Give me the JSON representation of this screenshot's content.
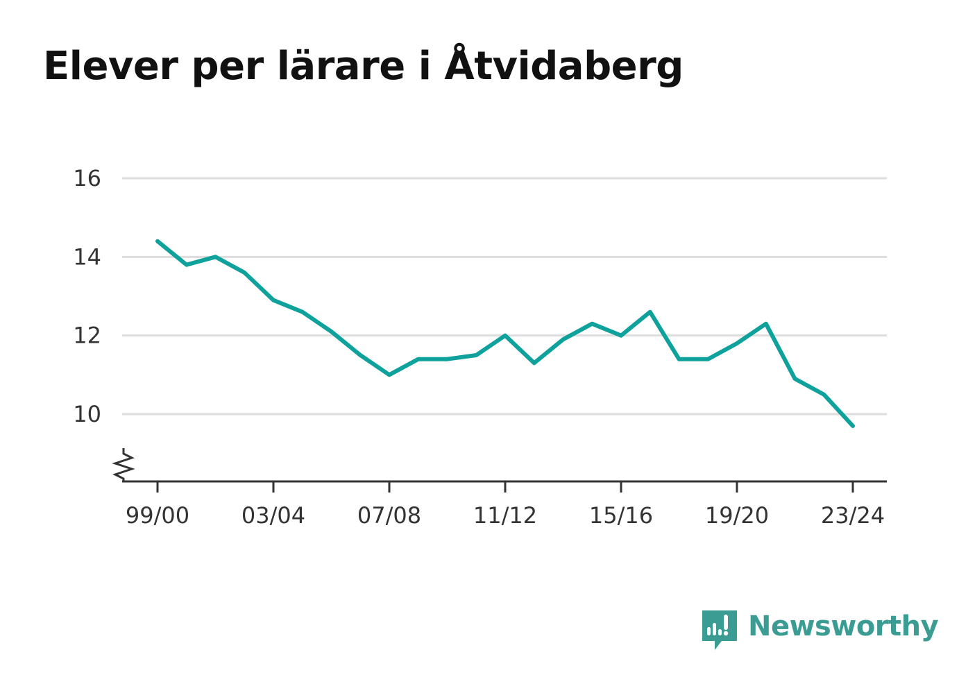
{
  "colors": {
    "series": "#0fa19b",
    "brand": "#3b9c94",
    "title": "#111111",
    "axis": "#333333",
    "grid": "#dddddd"
  },
  "brand": {
    "name": "Newsworthy",
    "icon": "newsworthy-logo-icon"
  },
  "chart_data": {
    "type": "line",
    "title": "Elever per lärare i Åtvidaberg",
    "xlabel": "",
    "ylabel": "",
    "x": [
      "99/00",
      "00/01",
      "01/02",
      "02/03",
      "03/04",
      "04/05",
      "05/06",
      "06/07",
      "07/08",
      "08/09",
      "09/10",
      "10/11",
      "11/12",
      "12/13",
      "13/14",
      "14/15",
      "15/16",
      "16/17",
      "17/18",
      "18/19",
      "19/20",
      "20/21",
      "21/22",
      "22/23",
      "23/24"
    ],
    "x_tick_labels": [
      "99/00",
      "03/04",
      "07/08",
      "11/12",
      "15/16",
      "19/20",
      "23/24"
    ],
    "y_ticks": [
      10,
      12,
      14,
      16
    ],
    "ylim": [
      8.3,
      16
    ],
    "y_axis_break": true,
    "grid": true,
    "legend": "none",
    "series": [
      {
        "values": [
          14.4,
          13.8,
          14.0,
          13.6,
          12.9,
          12.6,
          12.1,
          11.5,
          11.0,
          11.4,
          11.4,
          11.5,
          12.0,
          11.3,
          11.9,
          12.3,
          12.0,
          12.6,
          11.4,
          11.4,
          11.8,
          12.3,
          10.9,
          10.5,
          9.7
        ]
      }
    ]
  }
}
